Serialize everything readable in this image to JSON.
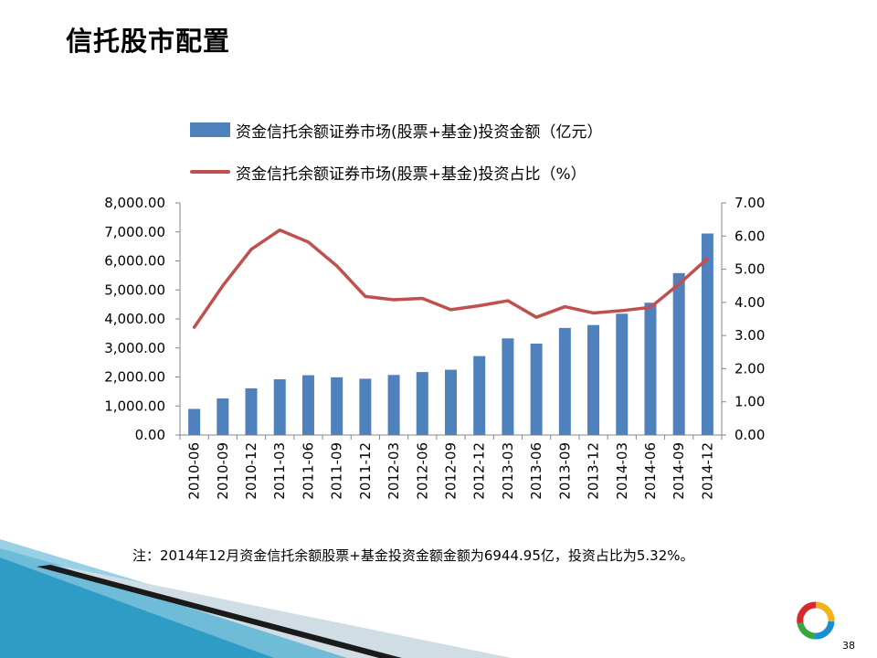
{
  "slide": {
    "title": "信托股市配置",
    "note": "注：2014年12月资金信托余额股票+基金投资金额金额为6944.95亿，投资占比为5.32%。",
    "page_number": "38"
  },
  "colors": {
    "bar": "#4f81bd",
    "line": "#c0504d",
    "axis": "#868686"
  },
  "chart_data": {
    "type": "bar",
    "categories": [
      "2010-06",
      "2010-09",
      "2010-12",
      "2011-03",
      "2011-06",
      "2011-09",
      "2011-12",
      "2012-03",
      "2012-06",
      "2012-09",
      "2012-12",
      "2013-03",
      "2013-06",
      "2013-09",
      "2013-12",
      "2014-03",
      "2014-06",
      "2014-09",
      "2014-12"
    ],
    "series": [
      {
        "name": "资金信托余额证券市场(股票+基金)投资金额（亿元）",
        "type": "bar",
        "axis": "left",
        "values": [
          900,
          1260,
          1610,
          1920,
          2060,
          1990,
          1940,
          2070,
          2170,
          2250,
          2720,
          3330,
          3150,
          3690,
          3790,
          4180,
          4560,
          5580,
          6944.95
        ]
      },
      {
        "name": "资金信托余额证券市场(股票+基金)投资占比（%）",
        "type": "line",
        "axis": "right",
        "values": [
          3.25,
          4.5,
          5.6,
          6.18,
          5.82,
          5.1,
          4.18,
          4.08,
          4.12,
          3.78,
          3.9,
          4.05,
          3.55,
          3.87,
          3.68,
          3.75,
          3.85,
          4.55,
          5.32
        ]
      }
    ],
    "y_left": {
      "min": 0,
      "max": 8000,
      "ticks": [
        "0.00",
        "1,000.00",
        "2,000.00",
        "3,000.00",
        "4,000.00",
        "5,000.00",
        "6,000.00",
        "7,000.00",
        "8,000.00"
      ]
    },
    "y_right": {
      "min": 0,
      "max": 7,
      "ticks": [
        "0.00",
        "1.00",
        "2.00",
        "3.00",
        "4.00",
        "5.00",
        "6.00",
        "7.00"
      ]
    },
    "grid": false,
    "legend_position": "top"
  }
}
